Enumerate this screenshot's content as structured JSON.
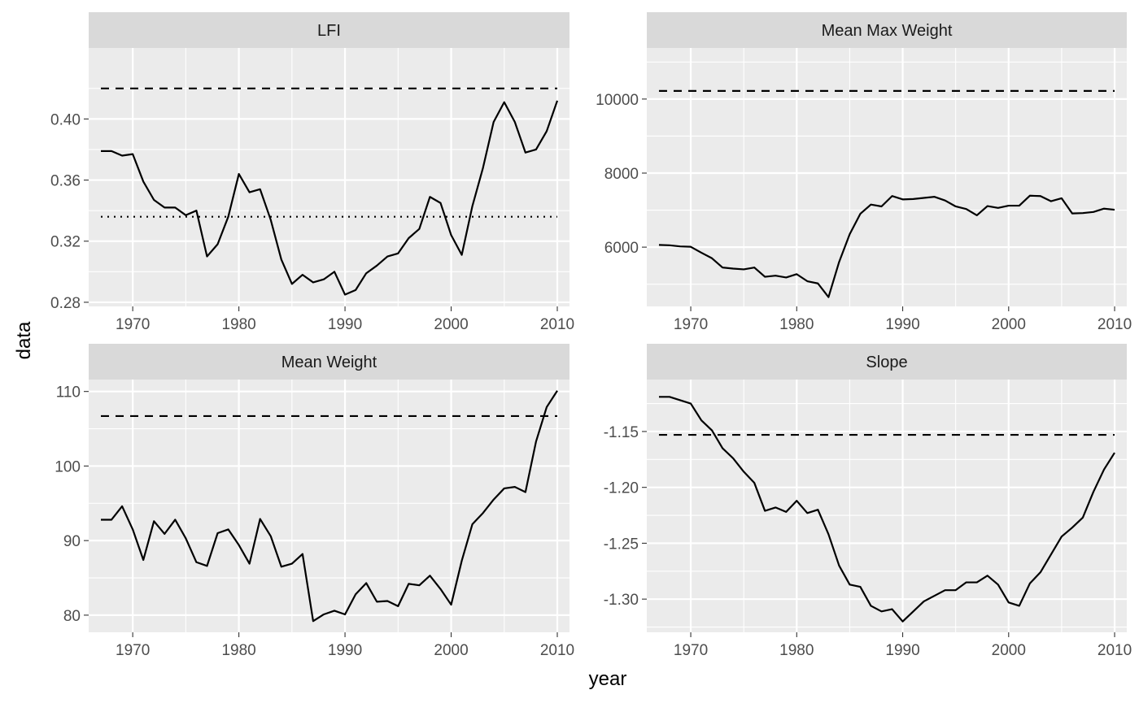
{
  "chart_data": {
    "type": "line",
    "xlabel": "year",
    "ylabel": "data",
    "x": [
      1967,
      1968,
      1969,
      1970,
      1971,
      1972,
      1973,
      1974,
      1975,
      1976,
      1977,
      1978,
      1979,
      1980,
      1981,
      1982,
      1983,
      1984,
      1985,
      1986,
      1987,
      1988,
      1989,
      1990,
      1991,
      1992,
      1993,
      1994,
      1995,
      1996,
      1997,
      1998,
      1999,
      2000,
      2001,
      2002,
      2003,
      2004,
      2005,
      2006,
      2007,
      2008,
      2009,
      2010
    ],
    "panels": [
      {
        "title": "LFI",
        "xticks": [
          1970,
          1980,
          1990,
          2000,
          2010
        ],
        "xlim": [
          1965.85,
          2011.15
        ],
        "yticks": [
          0.28,
          0.32,
          0.36,
          0.4
        ],
        "ytick_labels": [
          "0.28",
          "0.32",
          "0.36",
          "0.40"
        ],
        "ylim": [
          0.2773,
          0.4465
        ],
        "values": [
          0.379,
          0.379,
          0.376,
          0.377,
          0.359,
          0.347,
          0.342,
          0.342,
          0.337,
          0.34,
          0.31,
          0.318,
          0.336,
          0.364,
          0.352,
          0.354,
          0.334,
          0.308,
          0.292,
          0.298,
          0.293,
          0.295,
          0.3,
          0.285,
          0.288,
          0.299,
          0.304,
          0.31,
          0.312,
          0.322,
          0.328,
          0.349,
          0.345,
          0.324,
          0.311,
          0.343,
          0.368,
          0.398,
          0.411,
          0.398,
          0.378,
          0.38,
          0.392,
          0.412
        ],
        "reference_lines": [
          {
            "value": 0.42,
            "style": "dashed"
          },
          {
            "value": 0.336,
            "style": "dotted"
          }
        ]
      },
      {
        "title": "Mean Max Weight",
        "xticks": [
          1970,
          1980,
          1990,
          2000,
          2010
        ],
        "xlim": [
          1965.85,
          2011.15
        ],
        "yticks": [
          6000,
          8000,
          10000
        ],
        "ytick_labels": [
          "6000",
          "8000",
          "10000"
        ],
        "ylim": [
          4400,
          11380
        ],
        "values": [
          6060,
          6050,
          6020,
          6010,
          5850,
          5700,
          5450,
          5420,
          5400,
          5450,
          5200,
          5230,
          5180,
          5270,
          5080,
          5020,
          4650,
          5600,
          6350,
          6900,
          7150,
          7100,
          7380,
          7290,
          7300,
          7330,
          7360,
          7260,
          7100,
          7030,
          6860,
          7110,
          7060,
          7120,
          7120,
          7390,
          7380,
          7240,
          7320,
          6910,
          6920,
          6950,
          7040,
          7010
        ],
        "reference_lines": [
          {
            "value": 10220,
            "style": "dashed"
          }
        ]
      },
      {
        "title": "Mean Weight",
        "xticks": [
          1970,
          1980,
          1990,
          2000,
          2010
        ],
        "xlim": [
          1965.85,
          2011.15
        ],
        "yticks": [
          80,
          90,
          100,
          110
        ],
        "ytick_labels": [
          "80",
          "90",
          "100",
          "110"
        ],
        "ylim": [
          77.7,
          111.6
        ],
        "values": [
          92.8,
          92.8,
          94.6,
          91.5,
          87.4,
          92.6,
          90.9,
          92.8,
          90.3,
          87.1,
          86.6,
          91.0,
          91.5,
          89.4,
          86.9,
          92.9,
          90.6,
          86.5,
          86.9,
          88.2,
          79.2,
          80.1,
          80.6,
          80.1,
          82.8,
          84.3,
          81.8,
          81.9,
          81.2,
          84.2,
          84.0,
          85.3,
          83.5,
          81.4,
          87.3,
          92.2,
          93.7,
          95.5,
          97.0,
          97.2,
          96.5,
          103.3,
          107.9,
          110.1
        ],
        "reference_lines": [
          {
            "value": 106.7,
            "style": "dashed"
          }
        ]
      },
      {
        "title": "Slope",
        "xticks": [
          1970,
          1980,
          1990,
          2000,
          2010
        ],
        "xlim": [
          1965.85,
          2011.15
        ],
        "yticks": [
          -1.3,
          -1.25,
          -1.2,
          -1.15
        ],
        "ytick_labels": [
          "-1.30",
          "-1.25",
          "-1.20",
          "-1.15"
        ],
        "ylim": [
          -1.3297,
          -1.1035
        ],
        "values": [
          -1.119,
          -1.119,
          -1.122,
          -1.125,
          -1.14,
          -1.149,
          -1.165,
          -1.174,
          -1.186,
          -1.196,
          -1.221,
          -1.218,
          -1.222,
          -1.212,
          -1.223,
          -1.22,
          -1.242,
          -1.27,
          -1.287,
          -1.289,
          -1.306,
          -1.311,
          -1.309,
          -1.32,
          -1.311,
          -1.302,
          -1.297,
          -1.292,
          -1.292,
          -1.285,
          -1.285,
          -1.279,
          -1.287,
          -1.303,
          -1.306,
          -1.286,
          -1.276,
          -1.26,
          -1.244,
          -1.236,
          -1.227,
          -1.204,
          -1.184,
          -1.169
        ],
        "reference_lines": [
          {
            "value": -1.153,
            "style": "dashed"
          }
        ]
      }
    ]
  }
}
